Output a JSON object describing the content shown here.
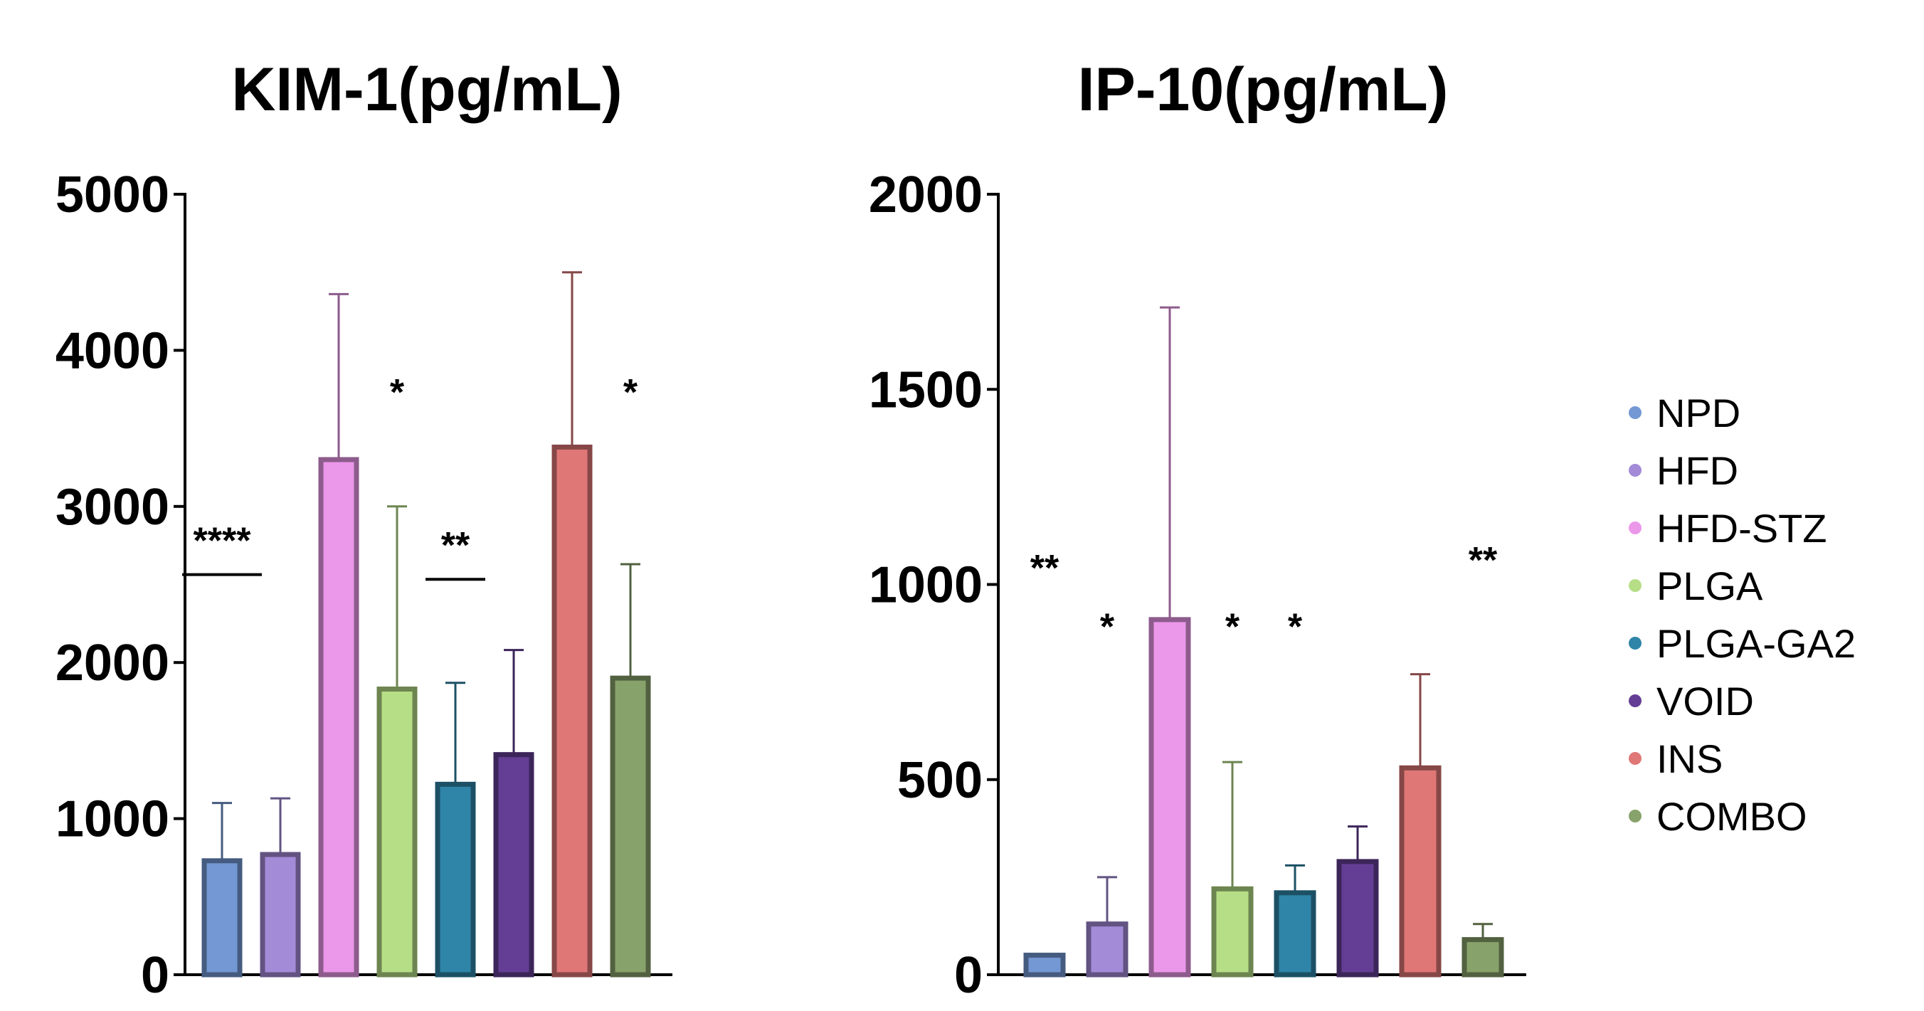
{
  "legend": [
    {
      "label": "NPD",
      "color": "#7398d3"
    },
    {
      "label": "HFD",
      "color": "#a48bd8"
    },
    {
      "label": "HFD-STZ",
      "color": "#eb97ea"
    },
    {
      "label": "PLGA",
      "color": "#b6de86"
    },
    {
      "label": "PLGA-GA2",
      "color": "#2f85a8"
    },
    {
      "label": "VOID",
      "color": "#643e94"
    },
    {
      "label": "INS",
      "color": "#e07777"
    },
    {
      "label": "COMBO",
      "color": "#88a26b"
    }
  ],
  "chart_data": [
    {
      "type": "bar",
      "title": "KIM-1(pg/mL)",
      "categories": [
        "NPD",
        "HFD",
        "HFD-STZ",
        "PLGA",
        "PLGA-GA2",
        "VOID",
        "INS",
        "COMBO"
      ],
      "values": [
        730,
        770,
        3300,
        1830,
        1220,
        1410,
        3380,
        1900
      ],
      "error_upper": [
        1100,
        1130,
        4360,
        3000,
        1870,
        2080,
        4500,
        2630
      ],
      "ylim": [
        0,
        5000
      ],
      "yticks": [
        "0",
        "1000",
        "2000",
        "3000",
        "4000",
        "5000"
      ],
      "annotations": [
        {
          "text": "****",
          "category": "NPD",
          "y": 2700,
          "underline": true
        },
        {
          "text": "*",
          "category": "PLGA",
          "y": 3650,
          "underline": false
        },
        {
          "text": "**",
          "category": "PLGA-GA2",
          "y": 2670,
          "underline": true
        },
        {
          "text": "*",
          "category": "COMBO",
          "y": 3650,
          "underline": false
        }
      ],
      "grid": false,
      "legend": "right"
    },
    {
      "type": "bar",
      "title": "IP-10(pg/mL)",
      "categories": [
        "NPD",
        "HFD",
        "HFD-STZ",
        "PLGA",
        "PLGA-GA2",
        "VOID",
        "INS",
        "COMBO"
      ],
      "values": [
        50,
        130,
        910,
        220,
        210,
        290,
        530,
        90
      ],
      "error_upper": [
        50,
        250,
        1710,
        545,
        280,
        380,
        770,
        130
      ],
      "ylim": [
        0,
        2000
      ],
      "yticks": [
        "0",
        "500",
        "1000",
        "1500",
        "2000"
      ],
      "annotations": [
        {
          "text": "**",
          "category": "NPD",
          "y": 1010,
          "underline": false
        },
        {
          "text": "*",
          "category": "HFD",
          "y": 860,
          "underline": false
        },
        {
          "text": "*",
          "category": "PLGA",
          "y": 860,
          "underline": false
        },
        {
          "text": "*",
          "category": "PLGA-GA2",
          "y": 860,
          "underline": false
        },
        {
          "text": "**",
          "category": "COMBO",
          "y": 1030,
          "underline": false
        }
      ],
      "grid": false,
      "legend": "right"
    }
  ]
}
